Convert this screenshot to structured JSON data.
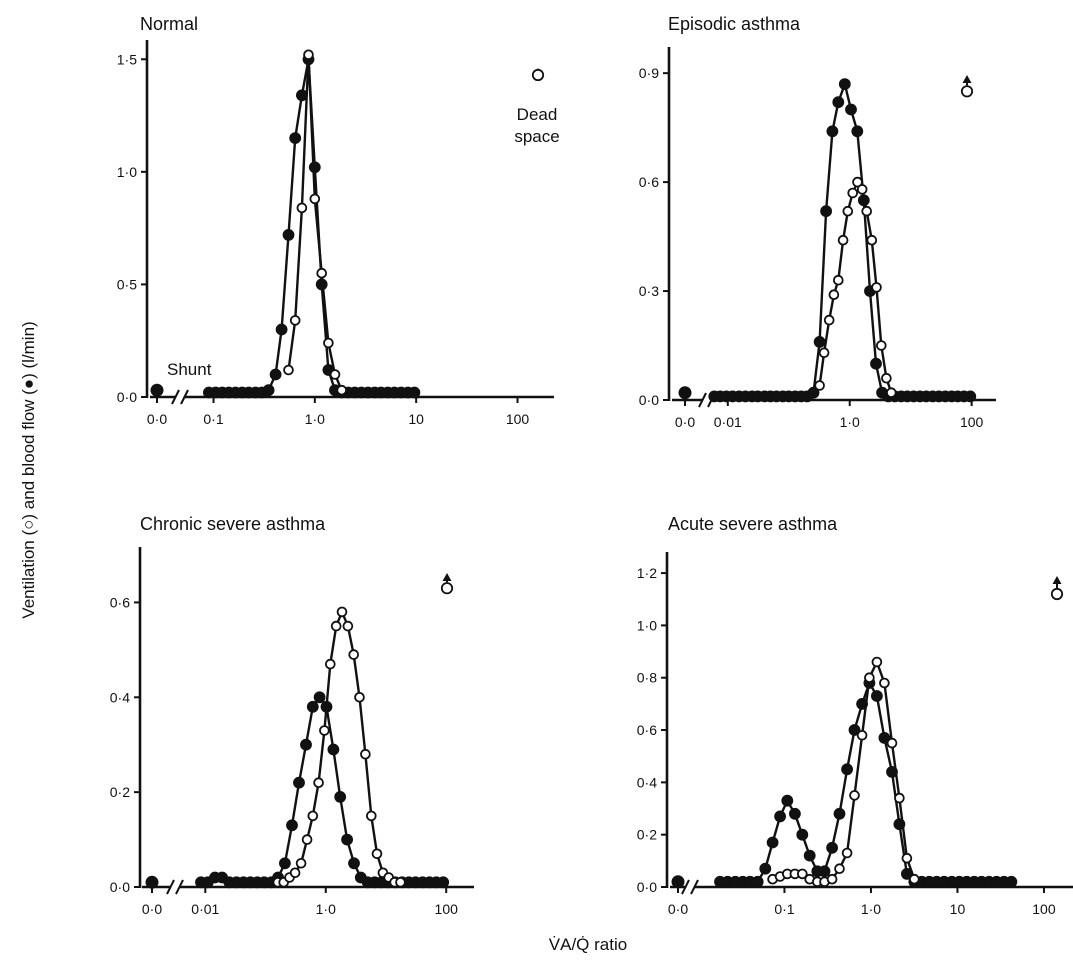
{
  "figure": {
    "ylabel": "Ventilation (○) and blood flow (●) (l/min)",
    "xlabel": "V̇A/Q̇ ratio"
  },
  "colors": {
    "ink": "#111111",
    "background": "#ffffff"
  },
  "chart_data": [
    {
      "type": "line",
      "title": "Normal",
      "xscale": "log",
      "xlim": [
        0.05,
        200
      ],
      "ylim": [
        0,
        1.55
      ],
      "yticks": [
        0.0,
        0.5,
        1.0,
        1.5
      ],
      "ytick_labels": [
        "0·0",
        "0·5",
        "1·0",
        "1·5"
      ],
      "xticks": [
        0.1,
        1,
        10,
        100
      ],
      "xtick_labels": [
        "0·1",
        "1·0",
        "10",
        "100"
      ],
      "zero_tick_label": "0·0",
      "annotations": {
        "shunt": "Shunt",
        "dead_space_1": "Dead",
        "dead_space_2": "space"
      },
      "shunt": {
        "blood_flow": 0.03
      },
      "dead_space": {
        "ventilation": 1.43
      },
      "series": [
        {
          "marker": "filled",
          "x": [
            0.09,
            0.105,
            0.122,
            0.142,
            0.165,
            0.192,
            0.223,
            0.26,
            0.3,
            0.35,
            0.41,
            0.47,
            0.55,
            0.64,
            0.745,
            0.866,
            1.0,
            1.17,
            1.36,
            1.58,
            1.84,
            2.14,
            2.48,
            2.88,
            3.35,
            3.9,
            4.5,
            5.25,
            6.1,
            7.1,
            8.3,
            9.6
          ],
          "y": [
            0.02,
            0.02,
            0.02,
            0.02,
            0.02,
            0.02,
            0.02,
            0.02,
            0.02,
            0.03,
            0.1,
            0.3,
            0.72,
            1.15,
            1.34,
            1.5,
            1.02,
            0.5,
            0.12,
            0.03,
            0.02,
            0.02,
            0.02,
            0.02,
            0.02,
            0.02,
            0.02,
            0.02,
            0.02,
            0.02,
            0.02,
            0.02
          ]
        },
        {
          "marker": "open",
          "x": [
            0.55,
            0.64,
            0.745,
            0.866,
            1.0,
            1.17,
            1.36,
            1.58,
            1.84
          ],
          "y": [
            0.12,
            0.34,
            0.84,
            1.52,
            0.88,
            0.55,
            0.24,
            0.1,
            0.03
          ]
        }
      ]
    },
    {
      "type": "line",
      "title": "Episodic asthma",
      "xscale": "log",
      "xlim": [
        0.0035,
        200
      ],
      "ylim": [
        0,
        0.95
      ],
      "yticks": [
        0.0,
        0.3,
        0.6,
        0.9
      ],
      "ytick_labels": [
        "0·0",
        "0·3",
        "0·6",
        "0·9"
      ],
      "xticks": [
        0.01,
        1,
        100
      ],
      "xtick_labels": [
        "0·01",
        "1·0",
        "100"
      ],
      "zero_tick_label": "0·0",
      "annotations": {},
      "shunt": {
        "blood_flow": 0.02
      },
      "dead_space": {
        "ventilation": 0.85
      },
      "series": [
        {
          "marker": "filled",
          "x": [
            0.006,
            0.0075,
            0.0095,
            0.012,
            0.0153,
            0.0195,
            0.025,
            0.031,
            0.04,
            0.05,
            0.063,
            0.08,
            0.1,
            0.127,
            0.16,
            0.2,
            0.255,
            0.32,
            0.41,
            0.52,
            0.65,
            0.83,
            1.05,
            1.33,
            1.7,
            2.15,
            2.7,
            3.4,
            4.3,
            5.5,
            7.0,
            8.8,
            11.2,
            14.2,
            18,
            23,
            29,
            37,
            47,
            59,
            75,
            95
          ],
          "y": [
            0.01,
            0.01,
            0.01,
            0.01,
            0.01,
            0.01,
            0.01,
            0.01,
            0.01,
            0.01,
            0.01,
            0.01,
            0.01,
            0.01,
            0.01,
            0.01,
            0.02,
            0.16,
            0.52,
            0.74,
            0.82,
            0.87,
            0.8,
            0.74,
            0.55,
            0.3,
            0.1,
            0.02,
            0.01,
            0.01,
            0.01,
            0.01,
            0.01,
            0.01,
            0.01,
            0.01,
            0.01,
            0.01,
            0.01,
            0.01,
            0.01,
            0.01
          ]
        },
        {
          "marker": "open",
          "x": [
            0.32,
            0.38,
            0.46,
            0.55,
            0.65,
            0.78,
            0.93,
            1.12,
            1.34,
            1.6,
            1.9,
            2.3,
            2.75,
            3.3,
            4.0,
            4.8
          ],
          "y": [
            0.04,
            0.13,
            0.22,
            0.29,
            0.33,
            0.44,
            0.52,
            0.57,
            0.6,
            0.58,
            0.52,
            0.44,
            0.31,
            0.15,
            0.06,
            0.02
          ]
        }
      ]
    },
    {
      "type": "line",
      "title": "Chronic severe asthma",
      "xscale": "log",
      "xlim": [
        0.0028,
        230
      ],
      "ylim": [
        0,
        0.7
      ],
      "yticks": [
        0.0,
        0.2,
        0.4,
        0.6
      ],
      "ytick_labels": [
        "0·0",
        "0·2",
        "0·4",
        "0·6"
      ],
      "xticks": [
        0.01,
        1,
        100
      ],
      "xtick_labels": [
        "0·01",
        "1·0",
        "100"
      ],
      "zero_tick_label": "0·0",
      "annotations": {},
      "shunt": {
        "blood_flow": 0.01
      },
      "dead_space": {
        "ventilation": 0.63
      },
      "series": [
        {
          "marker": "filled",
          "x": [
            0.0085,
            0.011,
            0.0145,
            0.019,
            0.025,
            0.033,
            0.043,
            0.056,
            0.073,
            0.095,
            0.125,
            0.162,
            0.21,
            0.275,
            0.36,
            0.47,
            0.61,
            0.79,
            1.03,
            1.34,
            1.74,
            2.26,
            2.94,
            3.82,
            4.97,
            6.46,
            8.4,
            10.9,
            14.2,
            18.5,
            24,
            31,
            40.5,
            52.7,
            68.5,
            89
          ],
          "y": [
            0.01,
            0.01,
            0.02,
            0.02,
            0.01,
            0.01,
            0.01,
            0.01,
            0.01,
            0.01,
            0.01,
            0.02,
            0.05,
            0.13,
            0.22,
            0.3,
            0.38,
            0.4,
            0.38,
            0.29,
            0.19,
            0.1,
            0.05,
            0.02,
            0.01,
            0.01,
            0.01,
            0.01,
            0.01,
            0.01,
            0.01,
            0.01,
            0.01,
            0.01,
            0.01,
            0.01
          ]
        },
        {
          "marker": "open",
          "x": [
            0.16,
            0.2,
            0.25,
            0.31,
            0.39,
            0.49,
            0.61,
            0.76,
            0.95,
            1.19,
            1.49,
            1.86,
            2.33,
            2.91,
            3.64,
            4.55,
            5.7,
            7.1,
            8.9,
            11.1,
            13.9,
            17.4
          ],
          "y": [
            0.01,
            0.01,
            0.02,
            0.03,
            0.05,
            0.1,
            0.15,
            0.22,
            0.33,
            0.47,
            0.55,
            0.58,
            0.55,
            0.49,
            0.4,
            0.28,
            0.15,
            0.07,
            0.03,
            0.02,
            0.01,
            0.01
          ]
        }
      ]
    },
    {
      "type": "line",
      "title": "Acute severe asthma",
      "xscale": "log",
      "xlim": [
        0.009,
        200
      ],
      "ylim": [
        0,
        1.25
      ],
      "yticks": [
        0.0,
        0.2,
        0.4,
        0.6,
        0.8,
        1.0,
        1.2
      ],
      "ytick_labels": [
        "0·0",
        "0·2",
        "0·4",
        "0·6",
        "0·8",
        "1·0",
        "1·2"
      ],
      "xticks": [
        0.1,
        1,
        10,
        100
      ],
      "xtick_labels": [
        "0·1",
        "1·0",
        "10",
        "100"
      ],
      "zero_tick_label": "0·0",
      "annotations": {},
      "shunt": {
        "blood_flow": 0.02
      },
      "dead_space": {
        "ventilation": 1.12
      },
      "series": [
        {
          "marker": "filled",
          "x": [
            0.018,
            0.022,
            0.027,
            0.033,
            0.04,
            0.049,
            0.06,
            0.073,
            0.089,
            0.108,
            0.132,
            0.161,
            0.196,
            0.24,
            0.29,
            0.355,
            0.433,
            0.53,
            0.645,
            0.79,
            0.96,
            1.17,
            1.43,
            1.75,
            2.13,
            2.6,
            3.17,
            3.87,
            4.72,
            5.76,
            7.0,
            8.6,
            10.5,
            12.8,
            15.6,
            19,
            23.2,
            28.3,
            34.5,
            42
          ],
          "y": [
            0.02,
            0.02,
            0.02,
            0.02,
            0.02,
            0.02,
            0.07,
            0.17,
            0.27,
            0.33,
            0.28,
            0.2,
            0.12,
            0.06,
            0.06,
            0.15,
            0.28,
            0.45,
            0.6,
            0.7,
            0.78,
            0.73,
            0.57,
            0.44,
            0.24,
            0.05,
            0.02,
            0.02,
            0.02,
            0.02,
            0.02,
            0.02,
            0.02,
            0.02,
            0.02,
            0.02,
            0.02,
            0.02,
            0.02,
            0.02
          ]
        },
        {
          "marker": "open",
          "x": [
            0.073,
            0.089,
            0.108,
            0.132,
            0.161,
            0.196,
            0.24,
            0.29,
            0.355,
            0.433,
            0.53,
            0.645,
            0.79,
            0.96,
            1.17,
            1.43,
            1.75,
            2.13,
            2.6,
            3.17
          ],
          "y": [
            0.03,
            0.04,
            0.05,
            0.05,
            0.05,
            0.03,
            0.02,
            0.02,
            0.03,
            0.07,
            0.13,
            0.35,
            0.58,
            0.8,
            0.86,
            0.78,
            0.55,
            0.34,
            0.11,
            0.03
          ]
        }
      ]
    }
  ]
}
